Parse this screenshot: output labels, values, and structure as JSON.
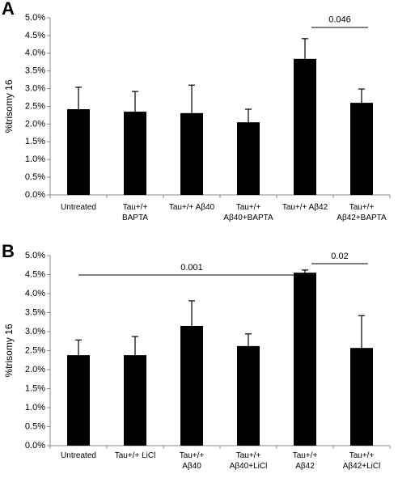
{
  "chart_data": [
    {
      "type": "bar",
      "panel": "A",
      "ylabel": "%trisomy 16",
      "color": "#000000",
      "categories": [
        "Untreated",
        "Tau+/+\nBAPTA",
        "Tau+/+ Aβ40",
        "Tau+/+\nAβ40+BAPTA",
        "Tau+/+ Aβ42",
        "Tau+/+\nAβ42+BAPTA"
      ],
      "values": [
        2.42,
        2.35,
        2.31,
        2.05,
        3.84,
        2.6
      ],
      "errors": [
        0.62,
        0.57,
        0.79,
        0.37,
        0.57,
        0.39
      ],
      "ylim": [
        0,
        5
      ],
      "yticks": [
        {
          "value": 0,
          "label": "0.0%"
        },
        {
          "value": 0.5,
          "label": "0.5%"
        },
        {
          "value": 1,
          "label": "1.0%"
        },
        {
          "value": 1.5,
          "label": "1.5%"
        },
        {
          "value": 2,
          "label": "2.0%"
        },
        {
          "value": 2.5,
          "label": "2.5%"
        },
        {
          "value": 3,
          "label": "3.0%"
        },
        {
          "value": 3.5,
          "label": "3.5%"
        },
        {
          "value": 4,
          "label": "4.0%"
        },
        {
          "value": 4.5,
          "label": "4.5%"
        },
        {
          "value": 5,
          "label": "5.0%"
        }
      ],
      "annotations": [
        {
          "text": "0.046",
          "from": 4,
          "to": 5
        }
      ]
    },
    {
      "type": "bar",
      "panel": "B",
      "ylabel": "%trisomy 16",
      "color": "#000000",
      "categories": [
        "Untreated",
        "Tau+/+ LiCl",
        "Tau+/+\nAβ40",
        "Tau+/+\nAβ40+LiCl",
        "Tau+/+\nAβ42",
        "Tau+/+\nAβ42+LiCl"
      ],
      "values": [
        2.38,
        2.38,
        3.15,
        2.62,
        4.55,
        2.57
      ],
      "errors": [
        0.4,
        0.49,
        0.66,
        0.32,
        0.07,
        0.85
      ],
      "ylim": [
        0,
        5
      ],
      "yticks": [
        {
          "value": 0,
          "label": "0.0%"
        },
        {
          "value": 0.5,
          "label": "0.5%"
        },
        {
          "value": 1,
          "label": "1.0%"
        },
        {
          "value": 1.5,
          "label": "1.5%"
        },
        {
          "value": 2,
          "label": "2.0%"
        },
        {
          "value": 2.5,
          "label": "2.5%"
        },
        {
          "value": 3,
          "label": "3.0%"
        },
        {
          "value": 3.5,
          "label": "3.5%"
        },
        {
          "value": 4,
          "label": "4.0%"
        },
        {
          "value": 4.5,
          "label": "4.5%"
        },
        {
          "value": 5,
          "label": "5.0%"
        }
      ],
      "annotations": [
        {
          "text": "0.001",
          "from": 0,
          "to": 4
        },
        {
          "text": "0.02",
          "from": 4,
          "to": 5
        }
      ]
    }
  ]
}
